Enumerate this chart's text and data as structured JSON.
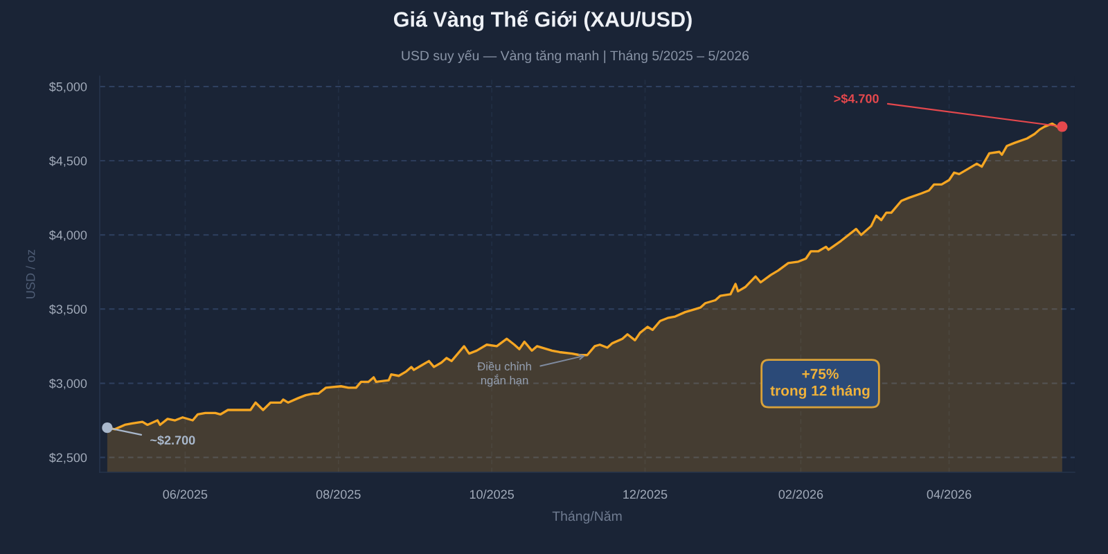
{
  "chart_data": {
    "type": "area",
    "title": "Giá Vàng Thế Giới (XAU/USD)",
    "subtitle": "USD suy yếu — Vàng tăng mạnh | Tháng 5/2025 – 5/2026",
    "xlabel": "Tháng/Năm",
    "ylabel": "USD / oz",
    "x": [
      "2025-05-01",
      "2025-05-04",
      "2025-05-08",
      "2025-05-11",
      "2025-05-15",
      "2025-05-17",
      "2025-05-21",
      "2025-05-22",
      "2025-05-25",
      "2025-05-28",
      "2025-05-31",
      "2025-06-04",
      "2025-06-06",
      "2025-06-09",
      "2025-06-13",
      "2025-06-15",
      "2025-06-18",
      "2025-06-22",
      "2025-06-27",
      "2025-06-29",
      "2025-07-02",
      "2025-07-05",
      "2025-07-09",
      "2025-07-10",
      "2025-07-12",
      "2025-07-16",
      "2025-07-19",
      "2025-07-22",
      "2025-07-24",
      "2025-07-27",
      "2025-08-02",
      "2025-08-05",
      "2025-08-08",
      "2025-08-10",
      "2025-08-13",
      "2025-08-15",
      "2025-08-16",
      "2025-08-21",
      "2025-08-22",
      "2025-08-25",
      "2025-08-28",
      "2025-08-30",
      "2025-08-31",
      "2025-09-03",
      "2025-09-06",
      "2025-09-08",
      "2025-09-11",
      "2025-09-13",
      "2025-09-15",
      "2025-09-20",
      "2025-09-22",
      "2025-09-25",
      "2025-09-29",
      "2025-10-03",
      "2025-10-07",
      "2025-10-10",
      "2025-10-12",
      "2025-10-14",
      "2025-10-17",
      "2025-10-19",
      "2025-10-25",
      "2025-10-28",
      "2025-11-02",
      "2025-11-05",
      "2025-11-08",
      "2025-11-11",
      "2025-11-13",
      "2025-11-16",
      "2025-11-18",
      "2025-11-22",
      "2025-11-24",
      "2025-11-27",
      "2025-11-29",
      "2025-12-02",
      "2025-12-04",
      "2025-12-07",
      "2025-12-10",
      "2025-12-13",
      "2025-12-17",
      "2025-12-21",
      "2025-12-23",
      "2025-12-25",
      "2025-12-29",
      "2025-12-31",
      "2026-01-04",
      "2026-01-06",
      "2026-01-07",
      "2026-01-10",
      "2026-01-14",
      "2026-01-16",
      "2026-01-20",
      "2026-01-23",
      "2026-01-27",
      "2026-01-31",
      "2026-02-03",
      "2026-02-05",
      "2026-02-08",
      "2026-02-11",
      "2026-02-12",
      "2026-02-17",
      "2026-02-23",
      "2026-02-25",
      "2026-03-01",
      "2026-03-03",
      "2026-03-05",
      "2026-03-07",
      "2026-03-09",
      "2026-03-13",
      "2026-03-16",
      "2026-03-21",
      "2026-03-24",
      "2026-03-26",
      "2026-03-29",
      "2026-04-01",
      "2026-04-03",
      "2026-04-05",
      "2026-04-09",
      "2026-04-12",
      "2026-04-14",
      "2026-04-17",
      "2026-04-21",
      "2026-04-22",
      "2026-04-24",
      "2026-04-27",
      "2026-05-02",
      "2026-05-05",
      "2026-05-07",
      "2026-05-09",
      "2026-05-12",
      "2026-05-14",
      "2026-05-16"
    ],
    "series": [
      {
        "color": "#f5a623",
        "line_style": "solid",
        "values": [
          2700,
          2690,
          2720,
          2730,
          2740,
          2720,
          2750,
          2720,
          2760,
          2750,
          2770,
          2750,
          2790,
          2800,
          2800,
          2790,
          2820,
          2820,
          2820,
          2870,
          2820,
          2870,
          2870,
          2890,
          2870,
          2900,
          2920,
          2930,
          2930,
          2970,
          2980,
          2970,
          2970,
          3010,
          3010,
          3040,
          3010,
          3020,
          3060,
          3050,
          3080,
          3110,
          3090,
          3120,
          3150,
          3110,
          3140,
          3170,
          3150,
          3250,
          3200,
          3220,
          3260,
          3250,
          3300,
          3260,
          3230,
          3280,
          3220,
          3250,
          3220,
          3210,
          3200,
          3190,
          3190,
          3250,
          3260,
          3240,
          3270,
          3300,
          3330,
          3290,
          3340,
          3380,
          3360,
          3420,
          3440,
          3450,
          3480,
          3500,
          3510,
          3540,
          3560,
          3590,
          3600,
          3670,
          3620,
          3650,
          3720,
          3680,
          3730,
          3760,
          3810,
          3820,
          3840,
          3890,
          3890,
          3920,
          3900,
          3960,
          4040,
          4000,
          4060,
          4130,
          4100,
          4150,
          4150,
          4230,
          4250,
          4280,
          4300,
          4340,
          4340,
          4370,
          4420,
          4410,
          4450,
          4480,
          4460,
          4550,
          4560,
          4540,
          4600,
          4620,
          4650,
          4680,
          4710,
          4730,
          4750,
          4730,
          4730
        ]
      },
      {
        "type": "scatter",
        "marker": "circle",
        "x": [
          "2025-05-01",
          "2026-05-16"
        ],
        "values": [
          2700,
          4730
        ],
        "colors": [
          "#a9b8cc",
          "#e5484d"
        ]
      }
    ],
    "xlim": [
      "2025-04-28",
      "2026-05-21"
    ],
    "xticks": [
      {
        "value": "2025-06-01",
        "label": "06/2025"
      },
      {
        "value": "2025-08-01",
        "label": "08/2025"
      },
      {
        "value": "2025-10-01",
        "label": "10/2025"
      },
      {
        "value": "2025-12-01",
        "label": "12/2025"
      },
      {
        "value": "2026-02-01",
        "label": "02/2026"
      },
      {
        "value": "2026-04-01",
        "label": "04/2026"
      }
    ],
    "ylim": [
      2400,
      5070
    ],
    "yticks": [
      {
        "value": 2500,
        "label": "$2,500"
      },
      {
        "value": 3000,
        "label": "$3,000"
      },
      {
        "value": 3500,
        "label": "$3,500"
      },
      {
        "value": 4000,
        "label": "$4,000"
      },
      {
        "value": 4500,
        "label": "$4,500"
      },
      {
        "value": 5000,
        "label": "$5,000"
      }
    ],
    "grid": true,
    "annotations": [
      {
        "text": "~$2.700",
        "x": "2025-05-01",
        "y": 2700
      },
      {
        "text": ">$4.700",
        "x": "2026-05-16",
        "y": 4730
      },
      {
        "text": "Điều chỉnh\nngắn hạn",
        "x": "2025-11-08",
        "y": 3190
      },
      "+75%\ntrong 12 tháng"
    ]
  }
}
